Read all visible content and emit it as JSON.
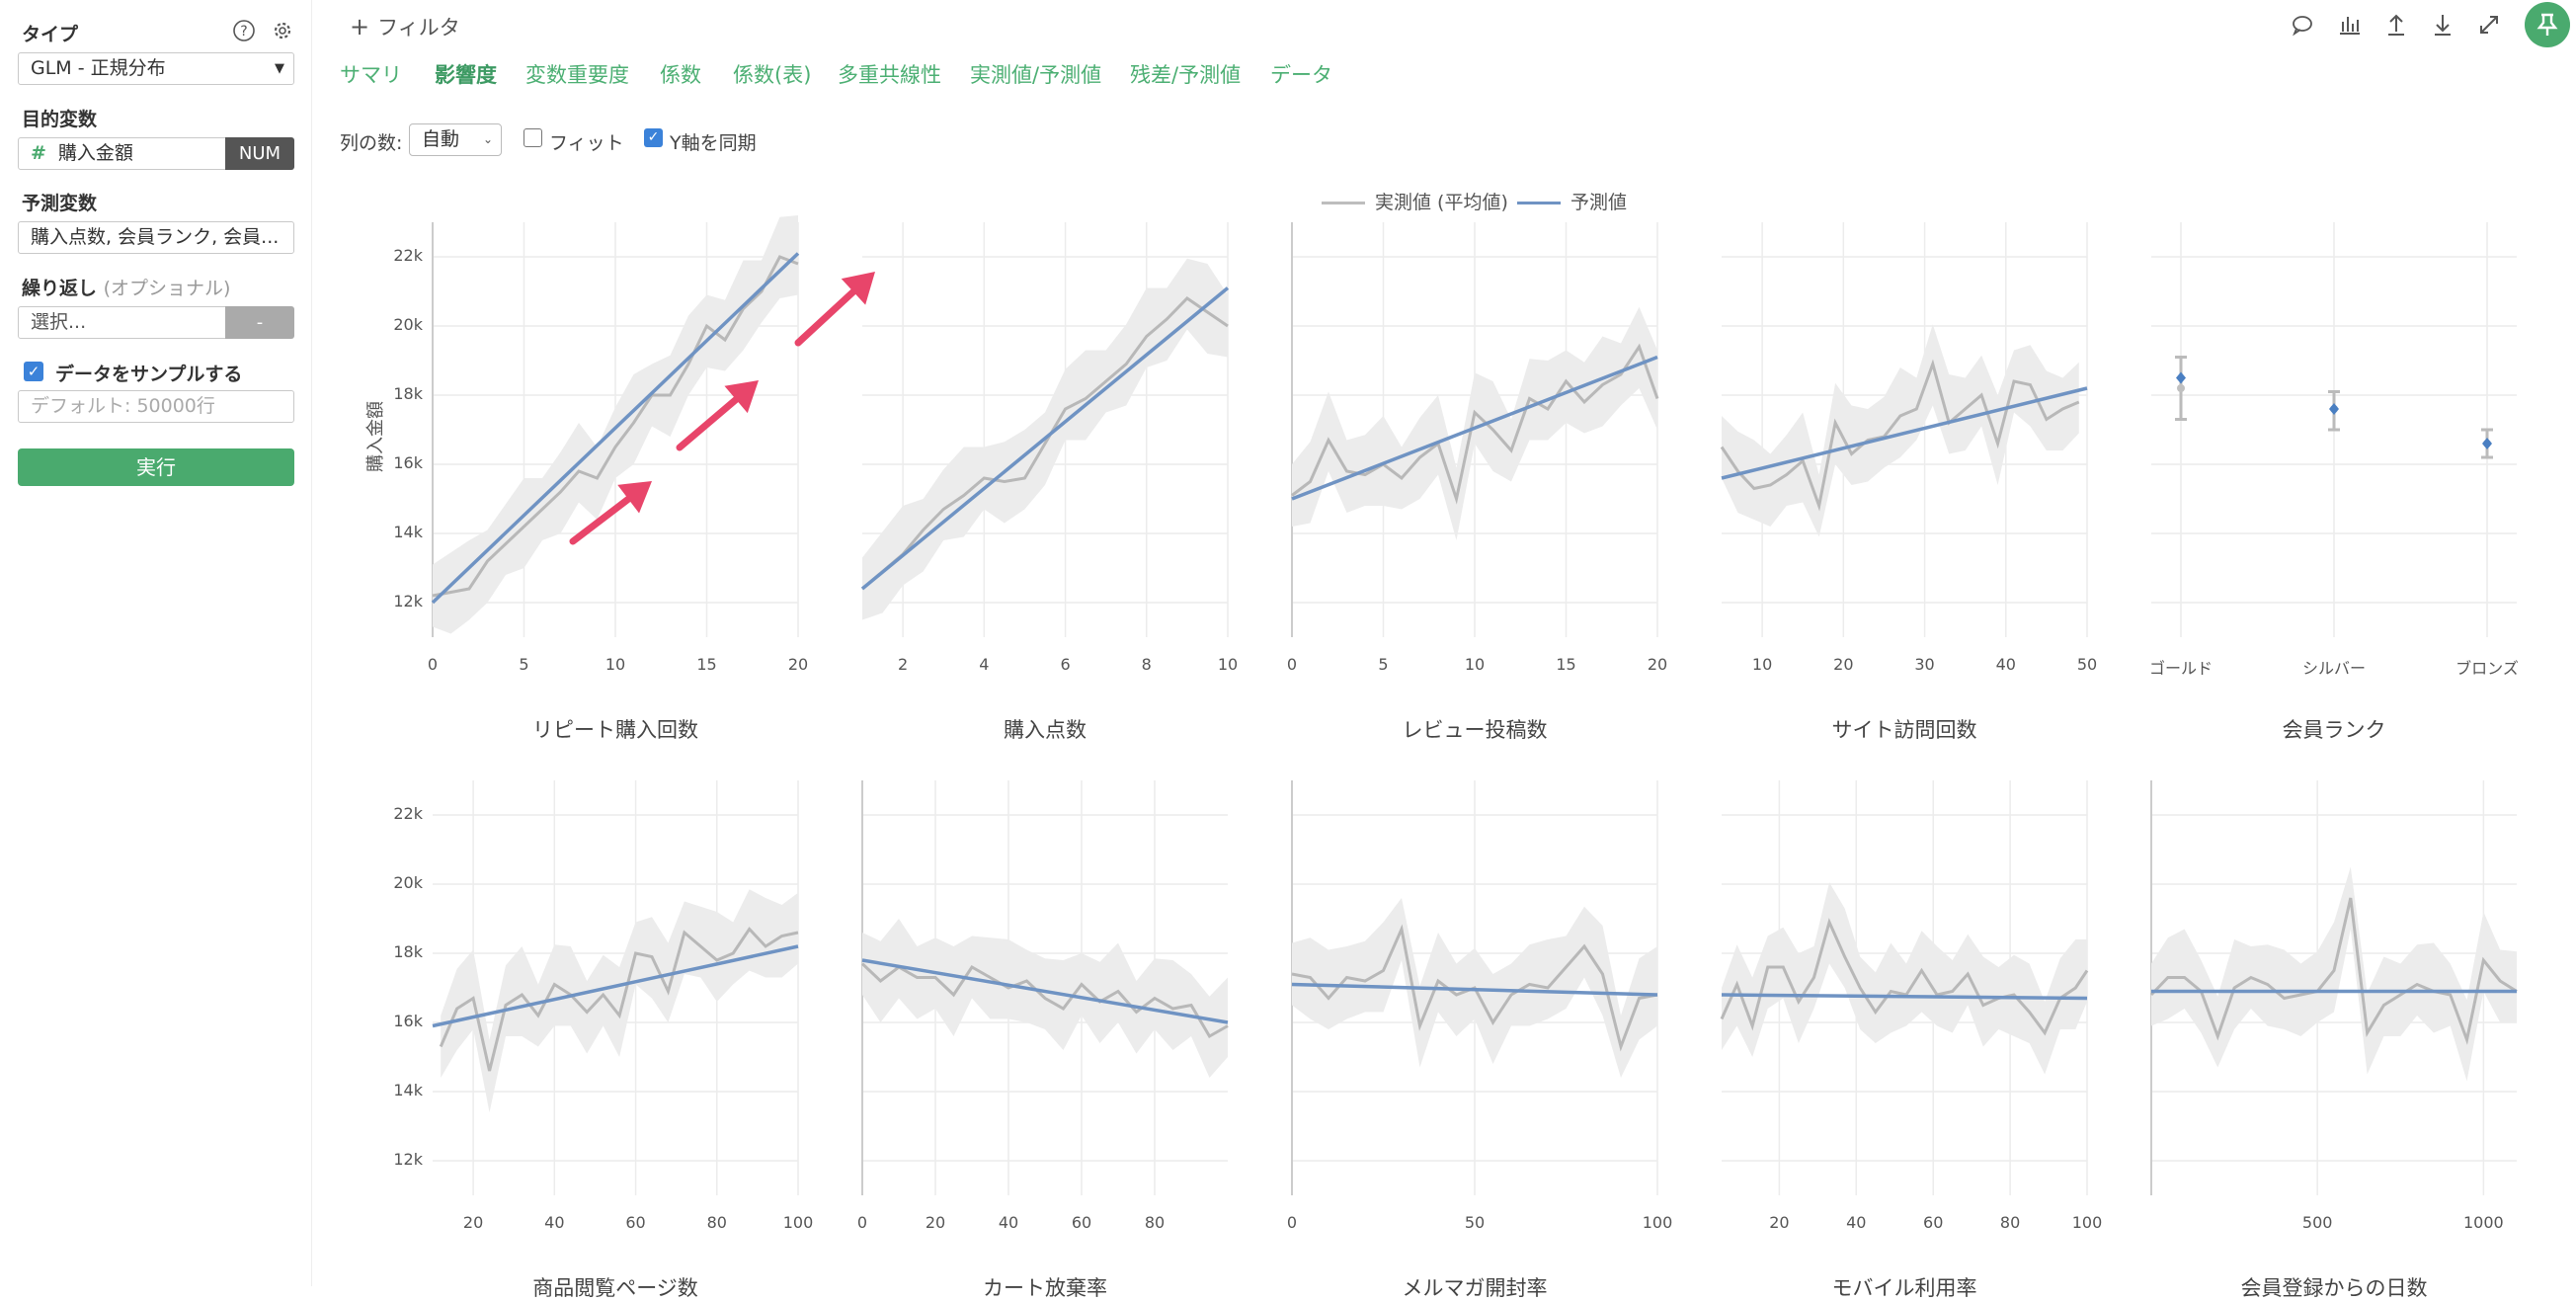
{
  "sidebar": {
    "type_label": "タイプ",
    "type_value": "GLM - 正規分布",
    "target_label": "目的変数",
    "target_value": "購入金額",
    "target_badge": "NUM",
    "predictor_label": "予測変数",
    "predictor_value": "購入点数, 会員ランク, 会員...",
    "repeat_label": "繰り返し",
    "repeat_optional": "(オプショナル)",
    "repeat_placeholder": "選択...",
    "repeat_button": "-",
    "sample_label": "データをサンプルする",
    "sample_placeholder": "デフォルト: 50000行",
    "run_label": "実行"
  },
  "header": {
    "filter_label": "フィルタ",
    "tabs": [
      "サマリ",
      "影響度",
      "変数重要度",
      "係数",
      "係数(表)",
      "多重共線性",
      "実測値/予測値",
      "残差/予測値",
      "データ"
    ],
    "active_tab": "影響度"
  },
  "controls": {
    "columns_label": "列の数:",
    "columns_value": "自動",
    "fit_label": "フィット",
    "sync_label": "Y軸を同期"
  },
  "legend": {
    "actual": "実測値 (平均値)",
    "predicted": "予測値"
  },
  "colors": {
    "accent": "#4aaa6e",
    "actual_line": "#b8b8b8",
    "predicted_line": "#6f93c3",
    "band": "#ececec",
    "arrow": "#e8456a",
    "badge": "#555555"
  },
  "y_axis_label": "購入金額",
  "y_ticks": [
    "12k",
    "14k",
    "16k",
    "18k",
    "20k",
    "22k"
  ],
  "chart_data": [
    {
      "type": "line",
      "title": "リピート購入回数",
      "xticks": [
        0,
        5,
        10,
        15,
        20
      ],
      "xlim": [
        0,
        20
      ],
      "ylim": [
        11000,
        23000
      ],
      "x": [
        0,
        1,
        2,
        3,
        4,
        5,
        6,
        7,
        8,
        9,
        10,
        11,
        12,
        13,
        14,
        15,
        16,
        17,
        18,
        19,
        20
      ],
      "actual": [
        12200,
        12300,
        12400,
        13200,
        13700,
        14200,
        14700,
        15200,
        15800,
        15600,
        16500,
        17200,
        18000,
        18000,
        18900,
        20000,
        19600,
        20500,
        21000,
        22000,
        21800
      ],
      "predicted": [
        12000,
        22100
      ]
    },
    {
      "type": "line",
      "title": "購入点数",
      "xticks": [
        2,
        4,
        6,
        8,
        10
      ],
      "xlim": [
        1,
        10
      ],
      "ylim": [
        11000,
        23000
      ],
      "x": [
        1,
        1.5,
        2,
        2.5,
        3,
        3.5,
        4,
        4.5,
        5,
        5.5,
        6,
        6.5,
        7,
        7.5,
        8,
        8.5,
        9,
        9.5,
        10
      ],
      "actual": [
        12400,
        12900,
        13400,
        14100,
        14700,
        15100,
        15600,
        15500,
        15600,
        16600,
        17600,
        17900,
        18400,
        18900,
        19700,
        20200,
        20800,
        20400,
        20000
      ],
      "predicted": [
        12400,
        21100
      ]
    },
    {
      "type": "line",
      "title": "レビュー投稿数",
      "xticks": [
        0,
        5,
        10,
        15,
        20
      ],
      "xlim": [
        0,
        20
      ],
      "ylim": [
        11000,
        23000
      ],
      "x": [
        0,
        1,
        2,
        3,
        4,
        5,
        6,
        7,
        8,
        9,
        10,
        11,
        12,
        13,
        14,
        15,
        16,
        17,
        18,
        19,
        20
      ],
      "actual": [
        15100,
        15500,
        16700,
        15800,
        15700,
        16000,
        15600,
        16200,
        16600,
        15000,
        17500,
        17000,
        16400,
        17900,
        17600,
        18400,
        17800,
        18300,
        18600,
        19400,
        17900
      ],
      "predicted": [
        15000,
        19100
      ]
    },
    {
      "type": "line",
      "title": "サイト訪問回数",
      "xticks": [
        10,
        20,
        30,
        40,
        50
      ],
      "xlim": [
        5,
        50
      ],
      "ylim": [
        11000,
        23000
      ],
      "x": [
        5,
        7,
        9,
        11,
        13,
        15,
        17,
        19,
        21,
        23,
        25,
        27,
        29,
        31,
        33,
        35,
        37,
        39,
        41,
        43,
        45,
        47,
        49
      ],
      "actual": [
        16500,
        15800,
        15300,
        15400,
        15700,
        16100,
        14800,
        17200,
        16300,
        16700,
        16800,
        17400,
        17600,
        18900,
        17200,
        17600,
        18000,
        16600,
        18400,
        18300,
        17300,
        17600,
        17800
      ],
      "predicted": [
        15600,
        18200
      ]
    },
    {
      "type": "scatter",
      "title": "会員ランク",
      "categories": [
        "ゴールド",
        "シルバー",
        "ブロンズ"
      ],
      "ylim": [
        11000,
        23000
      ],
      "actual": [
        18200,
        17600,
        16600
      ],
      "predicted": [
        18500,
        17600,
        16600
      ],
      "err_low": [
        17300,
        17000,
        16200
      ],
      "err_high": [
        19100,
        18100,
        17000
      ]
    },
    {
      "type": "line",
      "title": "商品閲覧ページ数",
      "xticks": [
        20,
        40,
        60,
        80,
        100
      ],
      "xlim": [
        10,
        100
      ],
      "ylim": [
        11000,
        23000
      ],
      "x": [
        12,
        16,
        20,
        24,
        28,
        32,
        36,
        40,
        44,
        48,
        52,
        56,
        60,
        64,
        68,
        72,
        76,
        80,
        84,
        88,
        92,
        96,
        100
      ],
      "actual": [
        15300,
        16400,
        16700,
        14600,
        16500,
        16800,
        16200,
        17100,
        16800,
        16300,
        16800,
        16200,
        18000,
        17900,
        16900,
        18600,
        18200,
        17800,
        18000,
        18700,
        18200,
        18500,
        18600
      ],
      "predicted": [
        15900,
        18200
      ]
    },
    {
      "type": "line",
      "title": "カート放棄率",
      "xticks": [
        0,
        20,
        40,
        60,
        80
      ],
      "xlim": [
        0,
        100
      ],
      "ylim": [
        11000,
        23000
      ],
      "x": [
        0,
        5,
        10,
        15,
        20,
        25,
        30,
        35,
        40,
        45,
        50,
        55,
        60,
        65,
        70,
        75,
        80,
        85,
        90,
        95,
        100
      ],
      "actual": [
        17700,
        17200,
        17600,
        17300,
        17300,
        16800,
        17600,
        17300,
        17000,
        17200,
        16700,
        16400,
        17100,
        16600,
        16900,
        16300,
        16700,
        16400,
        16500,
        15600,
        15900
      ],
      "predicted": [
        17800,
        16000
      ]
    },
    {
      "type": "line",
      "title": "メルマガ開封率",
      "xticks": [
        0,
        50,
        100
      ],
      "xlim": [
        0,
        100
      ],
      "ylim": [
        11000,
        23000
      ],
      "x": [
        0,
        5,
        10,
        15,
        20,
        25,
        30,
        35,
        40,
        45,
        50,
        55,
        60,
        65,
        70,
        75,
        80,
        85,
        90,
        95,
        100
      ],
      "actual": [
        17400,
        17300,
        16700,
        17300,
        17200,
        17500,
        18700,
        15900,
        17200,
        16800,
        17000,
        16000,
        16800,
        17100,
        17000,
        17600,
        18200,
        17400,
        15300,
        16700,
        16800
      ],
      "predicted": [
        17100,
        16800
      ]
    },
    {
      "type": "line",
      "title": "モバイル利用率",
      "xticks": [
        20,
        40,
        60,
        80,
        100
      ],
      "xlim": [
        5,
        100
      ],
      "ylim": [
        11000,
        23000
      ],
      "x": [
        5,
        9,
        13,
        17,
        21,
        25,
        29,
        33,
        37,
        41,
        45,
        49,
        53,
        57,
        61,
        65,
        69,
        73,
        77,
        81,
        85,
        89,
        93,
        97,
        100
      ],
      "actual": [
        16100,
        17100,
        15900,
        17600,
        17600,
        16600,
        17300,
        18900,
        17900,
        17000,
        16300,
        16900,
        16800,
        17500,
        16800,
        16900,
        17400,
        16500,
        16700,
        16800,
        16300,
        15700,
        16700,
        17000,
        17500
      ],
      "predicted": [
        16800,
        16700
      ]
    },
    {
      "type": "line",
      "title": "会員登録からの日数",
      "xticks": [
        500,
        1000
      ],
      "xlim": [
        0,
        1100
      ],
      "ylim": [
        11000,
        23000
      ],
      "x": [
        0,
        50,
        100,
        150,
        200,
        250,
        300,
        350,
        400,
        450,
        500,
        550,
        600,
        650,
        700,
        750,
        800,
        850,
        900,
        950,
        1000,
        1050,
        1100
      ],
      "actual": [
        16800,
        17300,
        17300,
        16900,
        15600,
        17000,
        17300,
        17100,
        16700,
        16800,
        16900,
        17500,
        19600,
        15700,
        16500,
        16800,
        17100,
        16900,
        16800,
        15500,
        17800,
        17200,
        16900
      ],
      "predicted": [
        16900,
        16900
      ]
    }
  ]
}
